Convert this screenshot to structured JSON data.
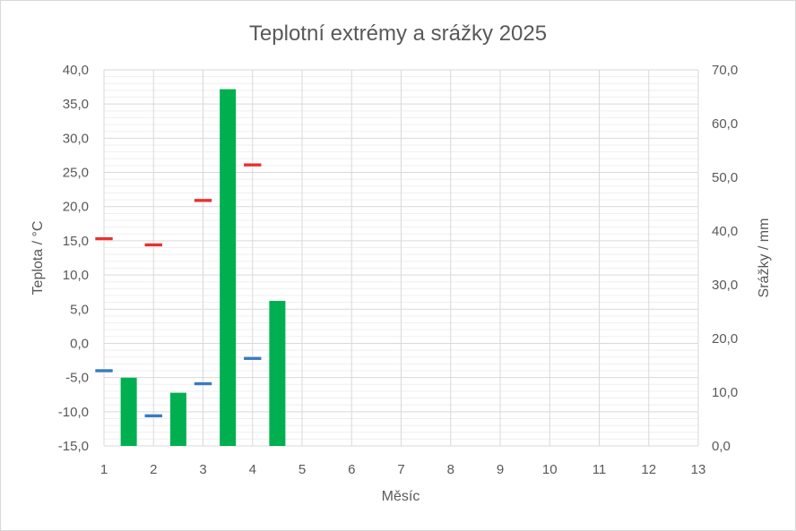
{
  "chart_data": {
    "type": "bar",
    "title": "Teplotní extrémy a srážky 2025",
    "xlabel": "Měsíc",
    "ylabel_left": "Teplota / °C",
    "ylabel_right": "Srážky / mm",
    "x_ticks": [
      "1",
      "2",
      "3",
      "4",
      "5",
      "6",
      "7",
      "8",
      "9",
      "10",
      "11",
      "12",
      "13"
    ],
    "xlim": [
      1,
      13
    ],
    "y_left_ticks": [
      "40,0",
      "35,0",
      "30,0",
      "25,0",
      "20,0",
      "15,0",
      "10,0",
      "5,0",
      "0,0",
      "-5,0",
      "-10,0",
      "-15,0"
    ],
    "ylim_left": [
      -15,
      40
    ],
    "y_right_ticks": [
      "70,0",
      "60,0",
      "50,0",
      "40,0",
      "30,0",
      "20,0",
      "10,0",
      "0,0"
    ],
    "ylim_right": [
      0,
      70
    ],
    "grid": true,
    "legend": "none",
    "series": [
      {
        "type": "marker",
        "axis": "left",
        "color": "#e8312f",
        "points": [
          {
            "x": 1,
            "y": 15.3
          },
          {
            "x": 2,
            "y": 14.4
          },
          {
            "x": 3,
            "y": 20.9
          },
          {
            "x": 4,
            "y": 26.1
          }
        ]
      },
      {
        "type": "marker",
        "axis": "left",
        "color": "#3a7bbf",
        "points": [
          {
            "x": 1,
            "y": -4.0
          },
          {
            "x": 2,
            "y": -10.6
          },
          {
            "x": 3,
            "y": -5.9
          },
          {
            "x": 4,
            "y": -2.2
          }
        ]
      },
      {
        "type": "bar",
        "axis": "right",
        "color": "#00b050",
        "points": [
          {
            "x": 1.5,
            "y": 12.7
          },
          {
            "x": 2.5,
            "y": 9.9
          },
          {
            "x": 3.5,
            "y": 66.4
          },
          {
            "x": 4.5,
            "y": 27.0
          }
        ]
      }
    ]
  }
}
